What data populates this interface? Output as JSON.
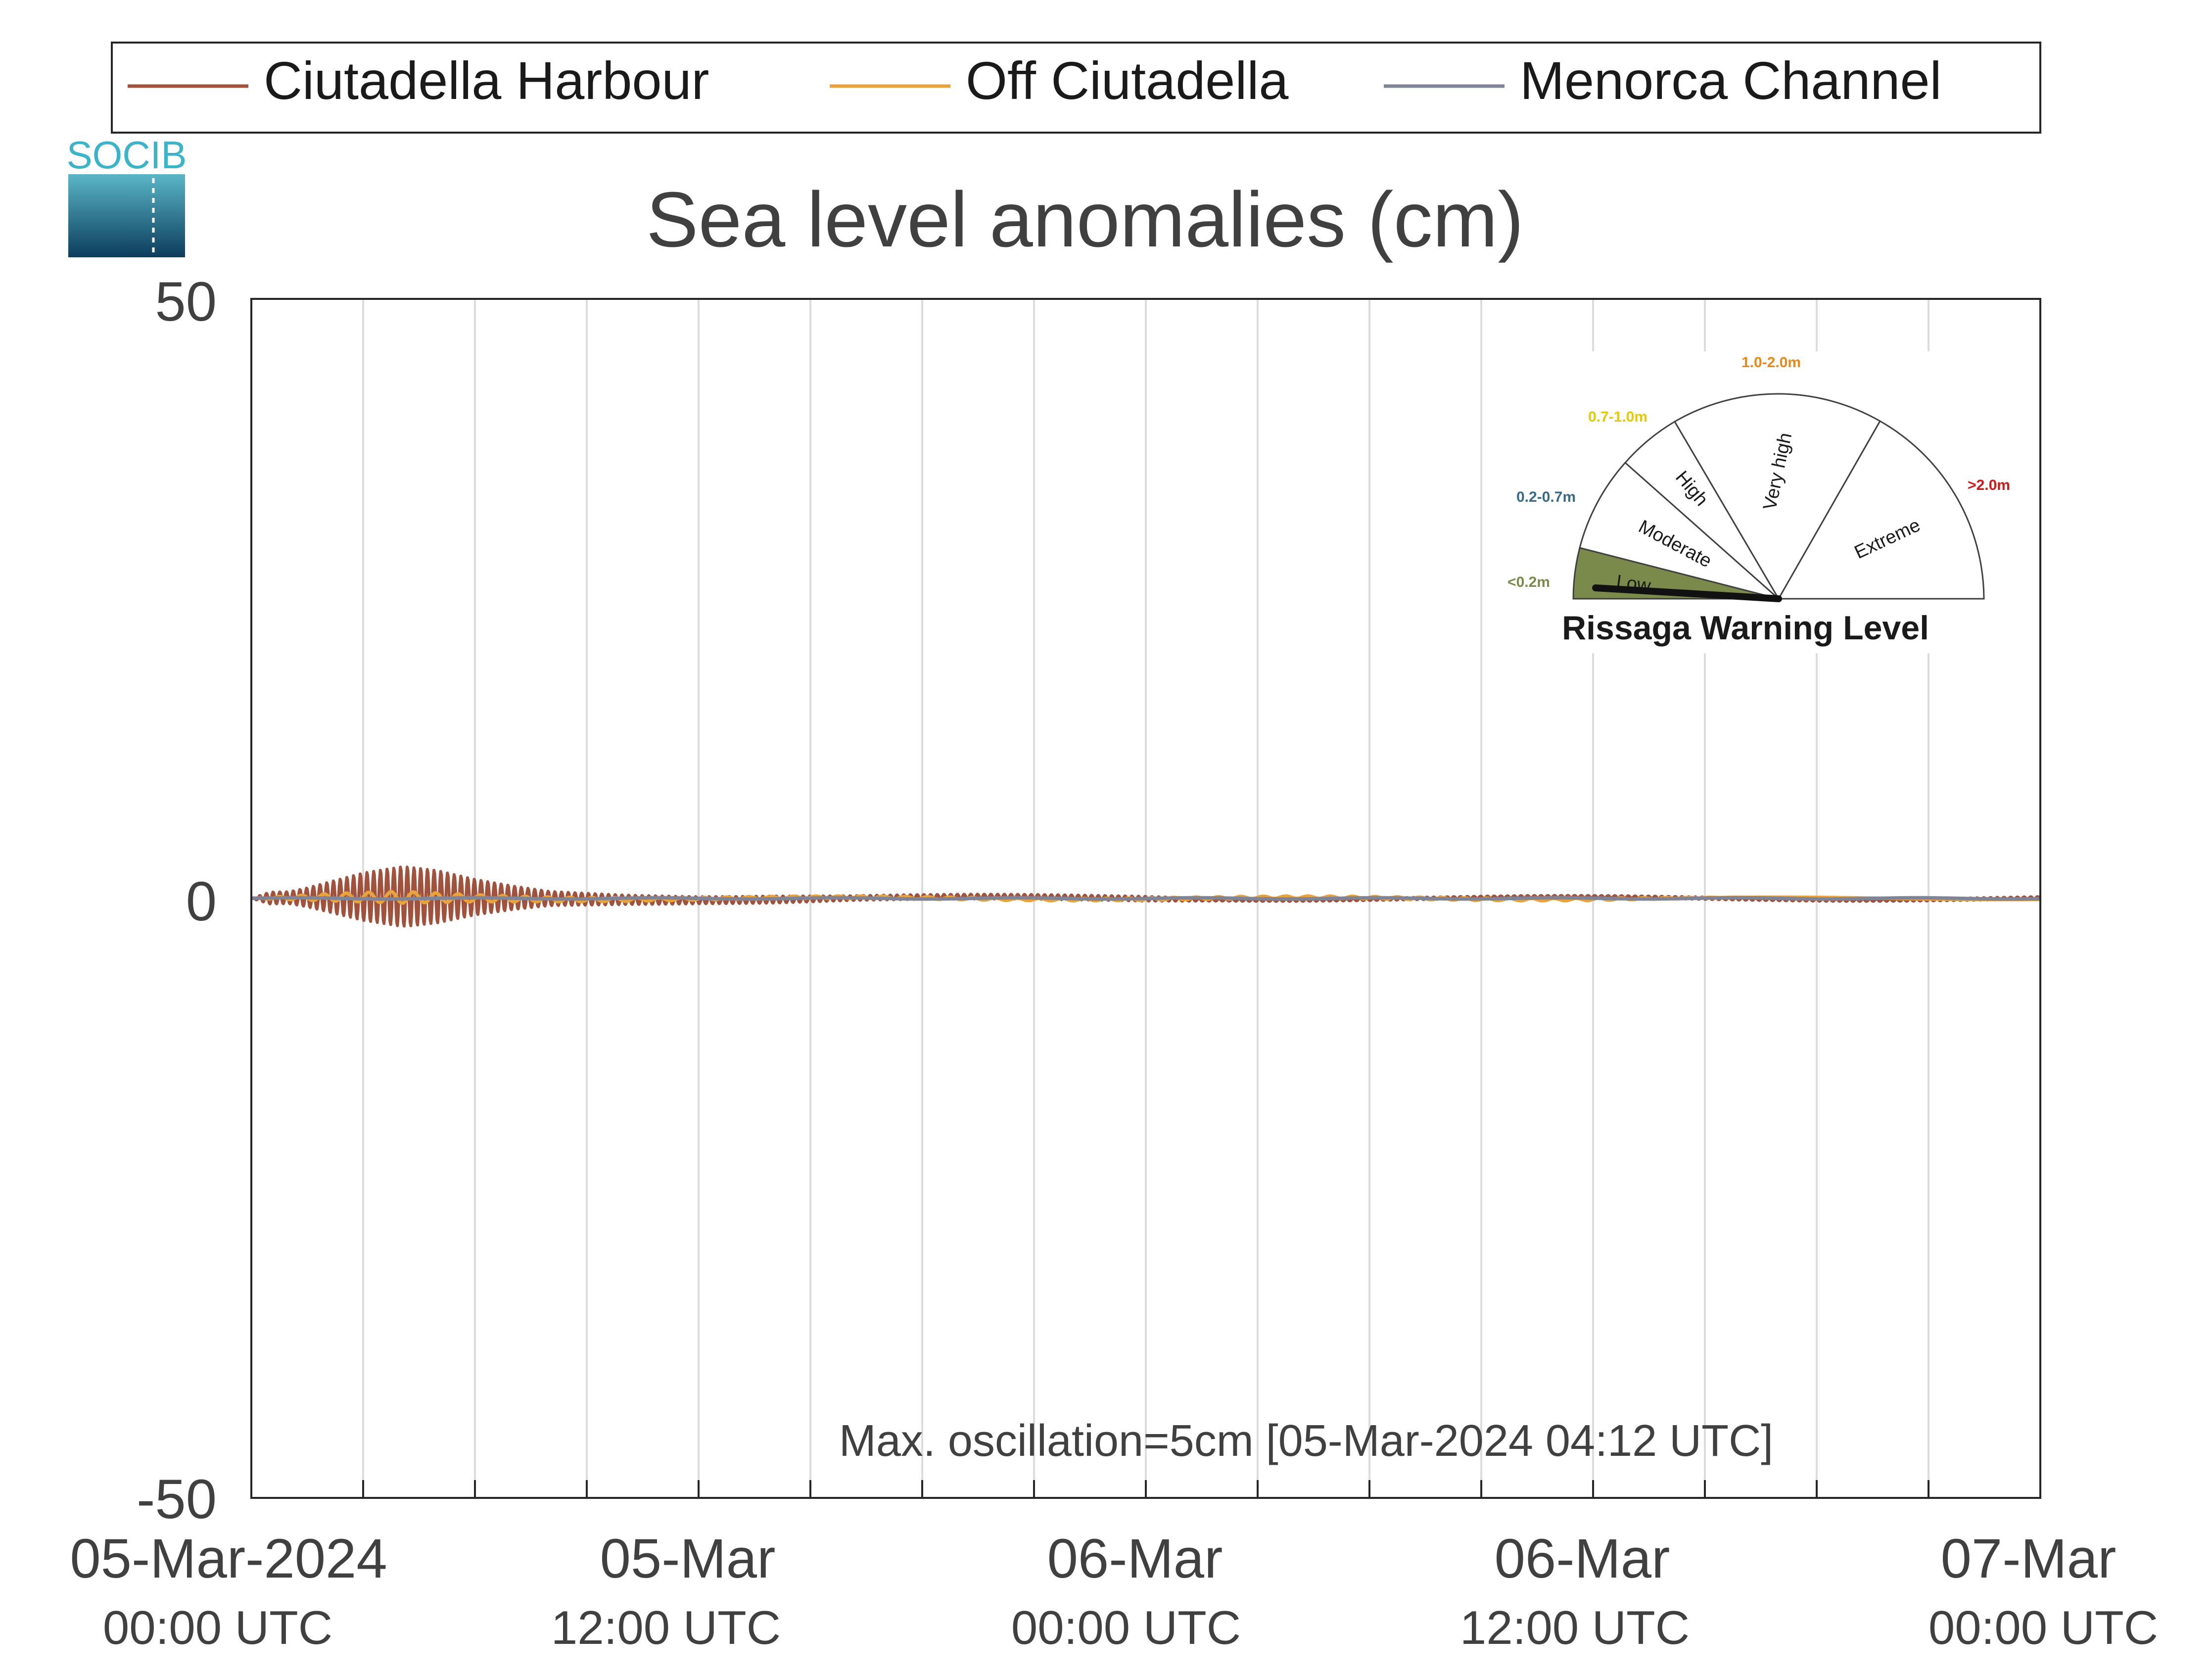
{
  "logo": {
    "text": "SOCIB"
  },
  "chart_data": {
    "type": "line",
    "title": "Sea level anomalies (cm)",
    "xlabel": "",
    "ylabel": "",
    "ylim": [
      -50,
      50
    ],
    "yticks": [
      50,
      0,
      -50
    ],
    "x_range": [
      "2024-03-05 00:00 UTC",
      "2024-03-07 00:00 UTC"
    ],
    "x_tick_labels": [
      {
        "date": "05-Mar-2024",
        "time": "00:00 UTC"
      },
      {
        "date": "05-Mar",
        "time": "12:00 UTC"
      },
      {
        "date": "06-Mar",
        "time": "00:00 UTC"
      },
      {
        "date": "06-Mar",
        "time": "12:00 UTC"
      },
      {
        "date": "07-Mar",
        "time": "00:00 UTC"
      }
    ],
    "minor_grid_hours": 3,
    "grid": true,
    "legend_position": "top",
    "series": [
      {
        "name": "Ciutadella Harbour",
        "color": "#a0523d",
        "x_hours": [
          0,
          0.5,
          1,
          1.5,
          2,
          3,
          4,
          4.2,
          5,
          6,
          7,
          8,
          10,
          12,
          14,
          16,
          18,
          20,
          22,
          24,
          26,
          28,
          30,
          32,
          34,
          36,
          38,
          40,
          42,
          44,
          46,
          48
        ],
        "y": [
          0,
          0.5,
          0.5,
          0.8,
          1.2,
          2.0,
          2.5,
          2.5,
          2.2,
          1.5,
          1.0,
          0.6,
          0.4,
          0.3,
          0.3,
          0.2,
          0.2,
          0.2,
          0.2,
          0.2,
          0.1,
          0.1,
          0.1,
          0.1,
          0.1,
          0.1,
          0.1,
          0.1,
          0.1,
          0.1,
          0.1,
          0.1
        ],
        "value_kind": "oscillation half-amplitude (cm) around mean level"
      },
      {
        "name": "Off Ciutadella",
        "color": "#e8a33d",
        "x_hours": [
          0,
          2,
          4,
          6,
          8,
          12,
          16,
          20,
          24,
          28,
          32,
          36,
          40,
          44,
          48
        ],
        "y": [
          0,
          0.3,
          0.5,
          0.3,
          0.2,
          0.1,
          0.1,
          0.1,
          0.1,
          0.1,
          0.1,
          0.1,
          0,
          0,
          0
        ]
      },
      {
        "name": "Menorca Channel",
        "color": "#7f8596",
        "x_hours": [
          0,
          2,
          4,
          6,
          8,
          12,
          16,
          20,
          24,
          28,
          32,
          36,
          40,
          44,
          48
        ],
        "y": [
          0,
          0,
          0,
          0,
          0,
          0,
          0,
          0,
          0,
          0,
          0,
          0,
          0,
          0,
          0
        ]
      }
    ],
    "annotation": "Max. oscillation=5cm [05-Mar-2024 04:12 UTC]",
    "annotation_color": "#a0523d"
  },
  "warning_gauge": {
    "title": "Rissaga Warning Level",
    "current_level": "Low",
    "levels": [
      {
        "label": "Low",
        "range": "<0.2m",
        "range_color": "#7a8a4a",
        "fill": "#7a8a4a"
      },
      {
        "label": "Moderate",
        "range": "0.2-0.7m",
        "range_color": "#3a6a8a",
        "fill": "#ffffff"
      },
      {
        "label": "High",
        "range": "0.7-1.0m",
        "range_color": "#e8c800",
        "fill": "#ffffff"
      },
      {
        "label": "Very high",
        "range": "1.0-2.0m",
        "range_color": "#e88a1a",
        "fill": "#ffffff"
      },
      {
        "label": "Extreme",
        "range": ">2.0m",
        "range_color": "#d01818",
        "fill": "#ffffff"
      }
    ]
  }
}
